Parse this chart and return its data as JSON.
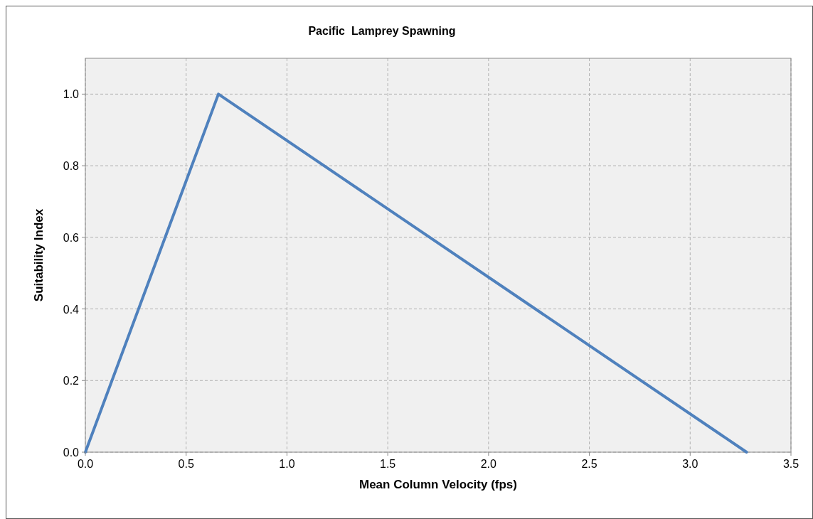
{
  "chart_data": {
    "type": "line",
    "title": "Pacific  Lamprey Spawning",
    "xlabel": "Mean Column Velocity (fps)",
    "ylabel": "Suitability Index",
    "x": [
      0,
      0.66,
      3.28
    ],
    "series": [
      {
        "color": "#4f81bd",
        "values": [
          0,
          1,
          0
        ]
      }
    ],
    "xlim": [
      0,
      3.5
    ],
    "xticks": [
      {
        "value": 0,
        "label": "0.0"
      },
      {
        "value": 0.5,
        "label": "0.5"
      },
      {
        "value": 1,
        "label": "1.0"
      },
      {
        "value": 1.5,
        "label": "1.5"
      },
      {
        "value": 2,
        "label": "2.0"
      },
      {
        "value": 2.5,
        "label": "2.5"
      },
      {
        "value": 3,
        "label": "3.0"
      },
      {
        "value": 3.5,
        "label": "3.5"
      }
    ],
    "ylim": [
      0,
      1.1
    ],
    "yticks": [
      {
        "value": 0,
        "label": "0.0"
      },
      {
        "value": 0.2,
        "label": "0.2"
      },
      {
        "value": 0.4,
        "label": "0.4"
      },
      {
        "value": 0.6,
        "label": "0.6"
      },
      {
        "value": 0.8,
        "label": "0.8"
      },
      {
        "value": 1,
        "label": "1.0"
      }
    ],
    "grid": true,
    "marker": "none",
    "line_style": "solid"
  }
}
